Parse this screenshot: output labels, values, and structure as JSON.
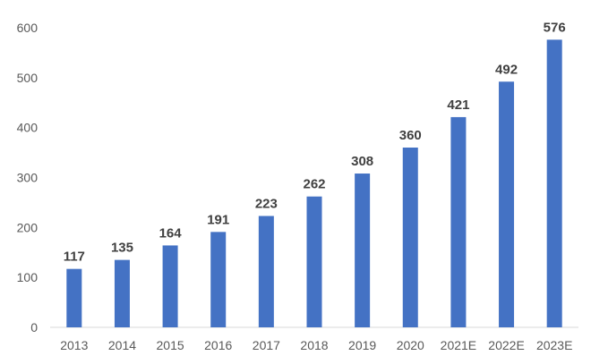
{
  "chart_data": {
    "type": "bar",
    "title": "",
    "xlabel": "",
    "ylabel": "",
    "categories": [
      "2013",
      "2014",
      "2015",
      "2016",
      "2017",
      "2018",
      "2019",
      "2020",
      "2021E",
      "2022E",
      "2023E"
    ],
    "values": [
      117,
      135,
      164,
      191,
      223,
      262,
      308,
      360,
      421,
      492,
      576
    ],
    "ylim": [
      0,
      600
    ],
    "yticks": [
      0,
      100,
      200,
      300,
      400,
      500,
      600
    ],
    "ytick_labels": [
      "0",
      "100",
      "200",
      "300",
      "400",
      "500",
      "600"
    ],
    "grid": false,
    "legend": "none",
    "data_labels": true,
    "bar_color": "#4472C4"
  }
}
